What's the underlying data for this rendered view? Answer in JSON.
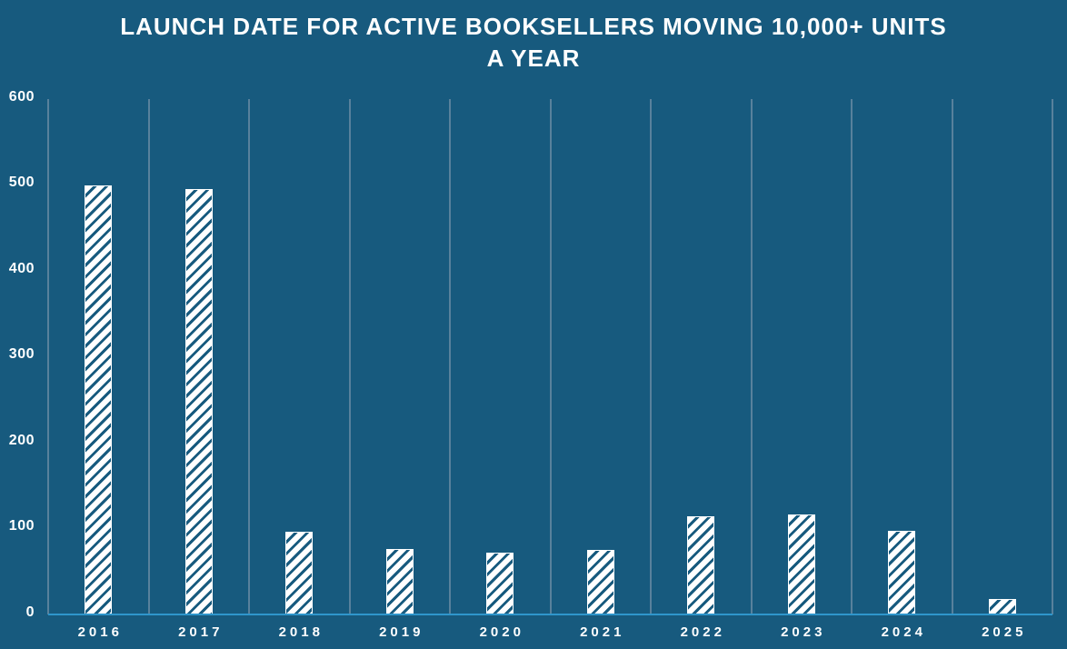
{
  "title": {
    "line1": "LAUNCH DATE FOR ACTIVE BOOKSELLERS MOVING 10,000+ UNITS",
    "line2": "A YEAR"
  },
  "chart_data": {
    "type": "bar",
    "title": "LAUNCH DATE FOR ACTIVE BOOKSELLERS MOVING 10,000+ UNITS A YEAR",
    "categories": [
      "2016",
      "2017",
      "2018",
      "2019",
      "2020",
      "2021",
      "2022",
      "2023",
      "2024",
      "2025"
    ],
    "values": [
      499,
      495,
      96,
      76,
      71,
      75,
      114,
      116,
      97,
      17
    ],
    "xlabel": "",
    "ylabel": "",
    "ylim": [
      0,
      600
    ],
    "y_ticks": [
      600,
      500,
      400,
      300,
      200,
      100,
      0
    ],
    "grid": "vertical-category-separators-only",
    "legend": "none",
    "bar_fill": "white-diagonal-hatch"
  },
  "colors": {
    "background": "#175A7E",
    "text": "#FFFFFF",
    "gridline": "#58819C",
    "baseline": "#2F96CC",
    "bar_hatch": "#FFFFFF"
  }
}
